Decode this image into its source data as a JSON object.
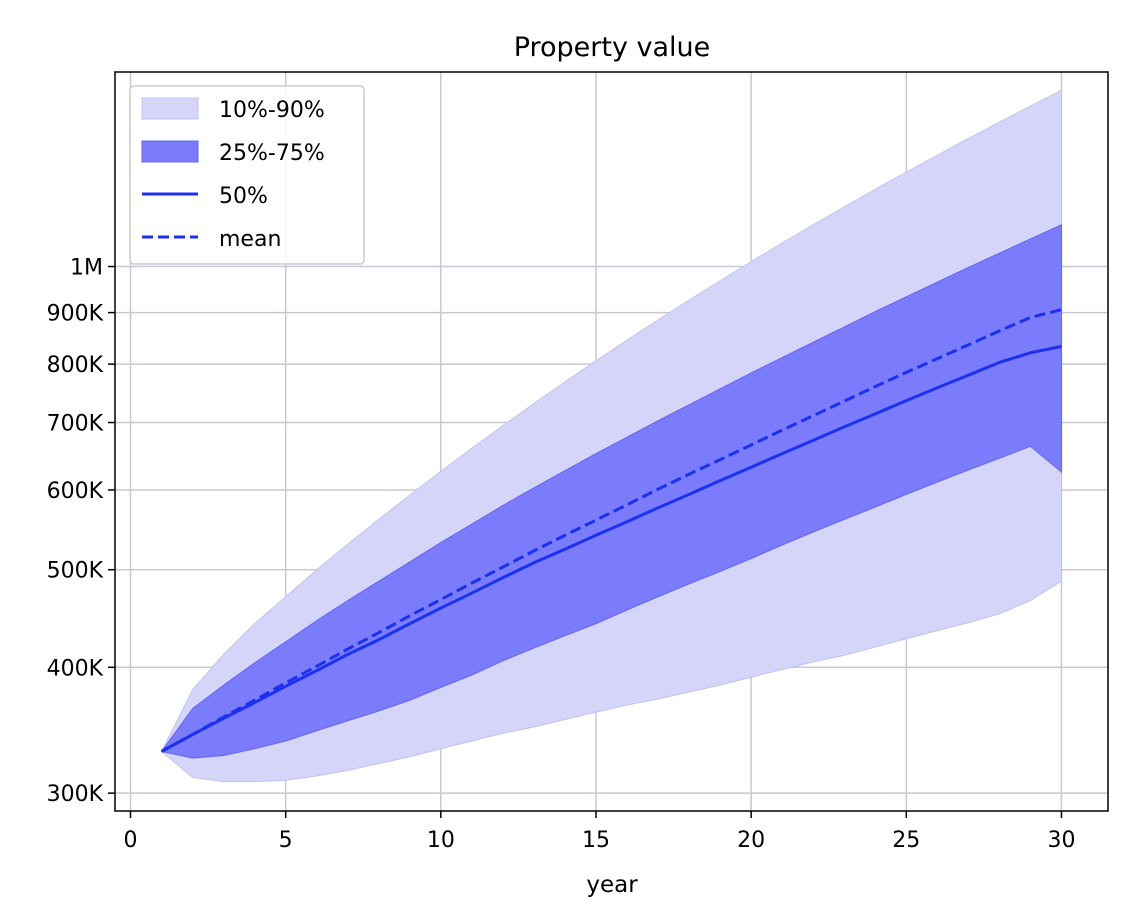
{
  "chart_data": {
    "type": "area",
    "title": "Property value",
    "xlabel": "year",
    "ylabel": "",
    "xlim": [
      -0.5,
      31.5
    ],
    "ylim": [
      288000,
      1560000
    ],
    "y_scale": "log",
    "grid": true,
    "legend_position": "top-left",
    "x_ticks": [
      0,
      5,
      10,
      15,
      20,
      25,
      30
    ],
    "x_tick_labels": [
      "0",
      "5",
      "10",
      "15",
      "20",
      "25",
      "30"
    ],
    "y_ticks": [
      300000,
      400000,
      500000,
      600000,
      700000,
      800000,
      900000,
      1000000
    ],
    "y_tick_labels": [
      "300K",
      "400K",
      "500K",
      "600K",
      "700K",
      "800K",
      "900K",
      "1M"
    ],
    "colors": {
      "band_outer": "#d5d5fa",
      "band_outer_edge": "#c2c2f2",
      "band_inner": "#7b7cfb",
      "band_inner_edge": "#6466ee",
      "line": "#1c31f0",
      "grid": "#c8c8d4"
    },
    "x": [
      1,
      2,
      3,
      4,
      5,
      6,
      7,
      8,
      9,
      10,
      11,
      12,
      13,
      14,
      15,
      16,
      17,
      18,
      19,
      20,
      21,
      22,
      23,
      24,
      25,
      26,
      27,
      28,
      29,
      30
    ],
    "series": [
      {
        "name": "10%",
        "values": [
          330000,
          311000,
          308000,
          308000,
          309000,
          312000,
          316000,
          321000,
          326000,
          332000,
          338000,
          344000,
          349000,
          355000,
          361000,
          367000,
          372000,
          378000,
          384000,
          391000,
          398000,
          405000,
          411000,
          419000,
          427000,
          435000,
          443000,
          452000,
          466000,
          487000
        ]
      },
      {
        "name": "25%",
        "values": [
          330000,
          325000,
          327000,
          332000,
          338000,
          346000,
          354000,
          362000,
          371000,
          382000,
          393000,
          406000,
          418000,
          430000,
          442000,
          456000,
          470000,
          484000,
          498000,
          513000,
          529000,
          545000,
          561000,
          577000,
          594000,
          611000,
          628000,
          645000,
          663000,
          625000
        ]
      },
      {
        "name": "50%",
        "values": [
          330000,
          343000,
          356000,
          369000,
          383000,
          397000,
          412000,
          426000,
          442000,
          458000,
          474000,
          491000,
          508000,
          524000,
          541000,
          558000,
          576000,
          594000,
          613000,
          632000,
          652000,
          672000,
          693000,
          714000,
          736000,
          758000,
          780000,
          803000,
          821000,
          833000
        ]
      },
      {
        "name": "mean",
        "values": [
          330000,
          343000,
          357000,
          371000,
          386000,
          401000,
          417000,
          433000,
          450000,
          467000,
          485000,
          503000,
          522000,
          541000,
          560000,
          580000,
          601000,
          622000,
          643000,
          665000,
          688000,
          711000,
          735000,
          760000,
          785000,
          810000,
          836000,
          863000,
          890000,
          906000
        ]
      },
      {
        "name": "75%",
        "values": [
          330000,
          364000,
          384000,
          404000,
          424000,
          445000,
          466000,
          487000,
          509000,
          532000,
          555000,
          579000,
          603000,
          627000,
          652000,
          677000,
          703000,
          729000,
          756000,
          784000,
          812000,
          841000,
          871000,
          902000,
          933000,
          965000,
          998000,
          1031000,
          1065000,
          1100000
        ]
      },
      {
        "name": "90%",
        "values": [
          330000,
          380000,
          412000,
          442000,
          470000,
          500000,
          530000,
          561000,
          593000,
          626000,
          660000,
          695000,
          731000,
          768000,
          806000,
          845000,
          885000,
          926000,
          968000,
          1011000,
          1055000,
          1100000,
          1146000,
          1193000,
          1241000,
          1290000,
          1340000,
          1391000,
          1443000,
          1496000
        ]
      }
    ],
    "legend": [
      {
        "label": "10%-90%",
        "kind": "band_outer"
      },
      {
        "label": "25%-75%",
        "kind": "band_inner"
      },
      {
        "label": "50%",
        "kind": "solid"
      },
      {
        "label": "mean",
        "kind": "dashed"
      }
    ]
  }
}
